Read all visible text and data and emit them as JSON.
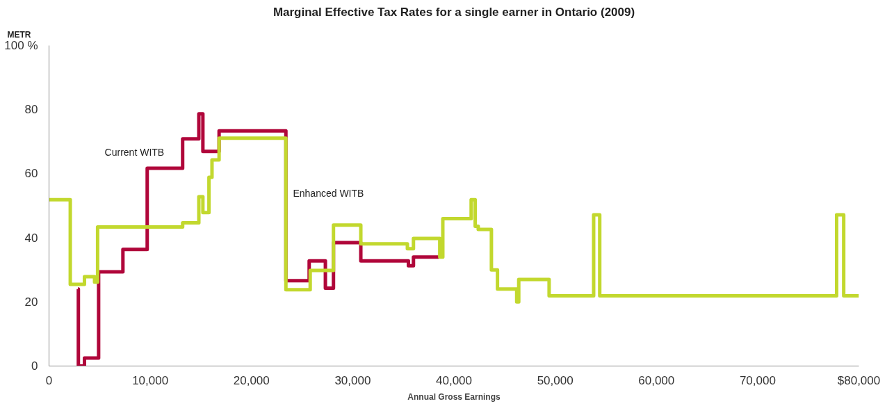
{
  "chart_data": {
    "type": "step",
    "title": "Marginal Effective Tax Rates for a single earner in Ontario (2009)",
    "xlabel": "Annual Gross Earnings",
    "ylabel": "METR",
    "xlim": [
      0,
      80000
    ],
    "ylim": [
      0,
      100
    ],
    "xticks": [
      0,
      {
        "value": 10000,
        "label": "10,000"
      },
      {
        "value": 20000,
        "label": "20,000"
      },
      {
        "value": 30000,
        "label": "30,000"
      },
      {
        "value": 40000,
        "label": "40,000"
      },
      {
        "value": 50000,
        "label": "50,000"
      },
      {
        "value": 60000,
        "label": "60,000"
      },
      {
        "value": 70000,
        "label": "70,000"
      },
      {
        "value": 80000,
        "label": "$80,000"
      }
    ],
    "yticks": [
      0,
      20,
      40,
      60,
      80,
      {
        "value": 100,
        "label": "100 %"
      }
    ],
    "grid": false,
    "line_style": "solid",
    "marker": "none",
    "series": [
      {
        "name": "Current WITB",
        "color": "#b0063a",
        "x": [
          2850,
          2900,
          3500,
          4900,
          7300,
          9700,
          13200,
          14800,
          15200,
          16800,
          23400,
          25700,
          27300,
          28100,
          30800,
          35500,
          36000,
          38500
        ],
        "values": [
          24,
          0,
          2.5,
          29.4,
          36.4,
          61.7,
          70.9,
          78.7,
          67,
          73.4,
          26.6,
          32.8,
          24.3,
          38.5,
          32.8,
          31.3,
          34,
          34
        ]
      },
      {
        "name": "Enhanced WITB",
        "color": "#c2d82e",
        "x": [
          0,
          2100,
          3500,
          4500,
          4800,
          13200,
          14800,
          15200,
          15800,
          16100,
          16800,
          23400,
          25800,
          28100,
          30800,
          35400,
          36000,
          38600,
          38900,
          41700,
          42100,
          42400,
          43700,
          44300,
          46200,
          46400,
          49400,
          53800,
          54400,
          77800,
          78500,
          80000
        ],
        "values": [
          51.9,
          25.5,
          27.9,
          26.2,
          43.4,
          44.7,
          52.8,
          47.9,
          58.9,
          64.3,
          71.1,
          23.8,
          29.8,
          44,
          38.1,
          36.6,
          39.8,
          34,
          46,
          51.9,
          43.6,
          42.6,
          30,
          24,
          20,
          27,
          21.9,
          47.2,
          21.9,
          47.2,
          21.9,
          21.9
        ]
      }
    ]
  }
}
